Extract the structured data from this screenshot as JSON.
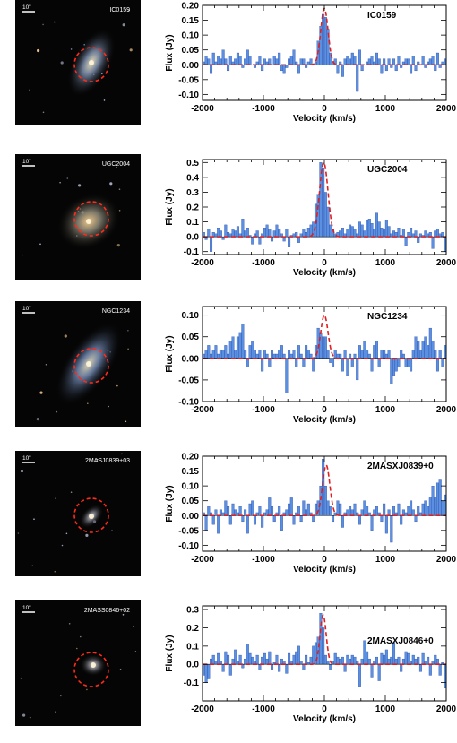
{
  "colors": {
    "bar_fill": "#5b8fe0",
    "bar_edge": "#1f3f9f",
    "fit_line": "#e02020",
    "aperture": "#ff2a1a",
    "sky": "#050505",
    "scale_text": "#ffffff"
  },
  "panels": [
    {
      "image": {
        "name": "IC0159",
        "scale_label": "10\""
      },
      "chart_data": {
        "type": "bar",
        "title": "IC0159",
        "xlabel": "Velocity (km/s)",
        "ylabel": "Flux (Jy)",
        "xlim": [
          -2000,
          2000
        ],
        "ylim": [
          -0.12,
          0.2
        ],
        "yticks": [
          -0.1,
          -0.05,
          0.0,
          0.05,
          0.1,
          0.15,
          0.2
        ],
        "ytick_labels": [
          "-0.10",
          "-0.05",
          "0.00",
          "0.05",
          "0.10",
          "0.15",
          "0.20"
        ],
        "xticks": [
          -2000,
          -1000,
          0,
          1000,
          2000
        ],
        "xtick_labels": [
          "-2000",
          "-1000",
          "0",
          "1000",
          "2000"
        ],
        "bin_width": 40,
        "x_start": -2000,
        "values": [
          0.01,
          0.03,
          0.02,
          -0.03,
          0.04,
          0.01,
          0.03,
          0.02,
          0.05,
          0.02,
          -0.02,
          0.03,
          0.01,
          0.02,
          0.04,
          0.03,
          -0.01,
          0.02,
          0.05,
          0.03,
          0.0,
          -0.01,
          0.01,
          0.03,
          -0.02,
          0.02,
          0.01,
          0.02,
          0.0,
          0.03,
          0.02,
          0.04,
          -0.02,
          -0.03,
          -0.01,
          0.02,
          0.03,
          0.05,
          0.01,
          -0.03,
          0.02,
          0.02,
          -0.01,
          0.01,
          0.02,
          0.0,
          0.01,
          0.08,
          0.13,
          0.17,
          0.16,
          0.12,
          0.04,
          0.01,
          0.02,
          -0.03,
          0.01,
          -0.04,
          0.02,
          0.03,
          0.02,
          0.04,
          0.03,
          -0.09,
          0.05,
          -0.02,
          0.0,
          0.01,
          0.02,
          0.03,
          0.01,
          0.04,
          0.02,
          -0.03,
          0.02,
          -0.02,
          0.02,
          -0.01,
          0.02,
          -0.02,
          0.03,
          -0.01,
          0.01,
          0.02,
          0.02,
          -0.03,
          0.03,
          -0.02,
          0.01,
          0.0,
          0.03,
          -0.01,
          0.01,
          0.02,
          0.03,
          -0.02,
          0.04,
          -0.01,
          0.01,
          0.02
        ],
        "fit": {
          "center": 0,
          "peak": 0.19,
          "width": 60
        }
      }
    },
    {
      "image": {
        "name": "UGC2004",
        "scale_label": "10\""
      },
      "chart_data": {
        "type": "bar",
        "title": "UGC2004",
        "xlabel": "Velocity (km/s)",
        "ylabel": "Flux (Jy)",
        "xlim": [
          -2000,
          2000
        ],
        "ylim": [
          -0.12,
          0.52
        ],
        "yticks": [
          -0.1,
          0.0,
          0.1,
          0.2,
          0.3,
          0.4,
          0.5
        ],
        "ytick_labels": [
          "-0.1",
          "0.0",
          "0.1",
          "0.2",
          "0.3",
          "0.4",
          "0.5"
        ],
        "xticks": [
          -2000,
          -1000,
          0,
          1000,
          2000
        ],
        "xtick_labels": [
          "-2000",
          "-1000",
          "0",
          "1000",
          "2000"
        ],
        "bin_width": 40,
        "x_start": -2000,
        "values": [
          0.03,
          -0.02,
          0.05,
          -0.1,
          0.03,
          0.02,
          0.06,
          0.04,
          -0.02,
          0.08,
          0.03,
          0.02,
          0.05,
          0.04,
          0.07,
          0.02,
          0.12,
          0.04,
          0.06,
          0.01,
          -0.05,
          0.02,
          0.04,
          -0.05,
          0.02,
          0.06,
          0.08,
          0.05,
          -0.03,
          0.04,
          0.08,
          0.05,
          0.02,
          -0.03,
          0.05,
          -0.07,
          0.01,
          0.02,
          0.03,
          -0.04,
          0.02,
          0.05,
          0.03,
          0.06,
          0.08,
          0.1,
          0.22,
          0.28,
          0.5,
          0.46,
          0.3,
          0.2,
          0.08,
          0.05,
          0.02,
          0.03,
          0.04,
          0.06,
          0.02,
          0.05,
          0.08,
          0.07,
          0.05,
          0.02,
          0.1,
          0.08,
          0.04,
          0.11,
          0.12,
          0.09,
          0.05,
          0.16,
          0.1,
          0.06,
          0.05,
          0.11,
          0.07,
          0.02,
          0.04,
          0.03,
          0.06,
          0.01,
          0.05,
          -0.06,
          0.03,
          0.06,
          0.02,
          0.04,
          -0.04,
          0.02,
          0.01,
          0.04,
          0.02,
          0.03,
          -0.08,
          0.04,
          0.05,
          0.02,
          0.03,
          -0.1
        ],
        "fit": {
          "center": -10,
          "peak": 0.5,
          "width": 70
        }
      }
    },
    {
      "image": {
        "name": "NGC1234",
        "scale_label": "10\""
      },
      "chart_data": {
        "type": "bar",
        "title": "NGC1234",
        "xlabel": "Velocity (km/s)",
        "ylabel": "Flux (Jy)",
        "xlim": [
          -2000,
          2000
        ],
        "ylim": [
          -0.1,
          0.12
        ],
        "yticks": [
          -0.1,
          -0.05,
          0.0,
          0.05,
          0.1
        ],
        "ytick_labels": [
          "-0.10",
          "-0.05",
          "0.00",
          "0.05",
          "0.10"
        ],
        "xticks": [
          -2000,
          -1000,
          0,
          1000,
          2000
        ],
        "xtick_labels": [
          "-2000",
          "-1000",
          "0",
          "1000",
          "2000"
        ],
        "bin_width": 40,
        "x_start": -2000,
        "values": [
          0.01,
          0.02,
          0.03,
          0.01,
          0.02,
          0.03,
          0.01,
          0.02,
          0.02,
          0.03,
          0.01,
          0.04,
          0.05,
          0.02,
          0.05,
          0.06,
          0.08,
          0.02,
          -0.02,
          0.03,
          0.04,
          0.02,
          0.01,
          0.02,
          -0.03,
          0.02,
          0.01,
          -0.02,
          0.02,
          0.01,
          0.01,
          0.02,
          0.03,
          0.01,
          -0.08,
          0.02,
          0.01,
          0.02,
          -0.02,
          0.03,
          0.01,
          -0.02,
          0.03,
          0.02,
          0.01,
          -0.03,
          0.03,
          0.07,
          0.06,
          0.05,
          0.05,
          0.02,
          -0.01,
          -0.02,
          0.02,
          0.01,
          0.01,
          -0.03,
          0.02,
          -0.04,
          0.01,
          -0.02,
          0.01,
          -0.05,
          0.03,
          0.02,
          0.04,
          0.02,
          0.01,
          -0.03,
          0.03,
          0.04,
          -0.02,
          0.02,
          0.02,
          0.01,
          0.02,
          -0.06,
          -0.04,
          -0.03,
          -0.02,
          0.02,
          0.01,
          -0.02,
          -0.02,
          -0.03,
          0.02,
          0.05,
          0.04,
          0.02,
          0.04,
          0.05,
          0.03,
          0.07,
          0.04,
          0.02,
          -0.03,
          0.02,
          -0.02,
          0.03
        ],
        "fit": {
          "center": 0,
          "peak": 0.1,
          "width": 60
        }
      }
    },
    {
      "image": {
        "name": "2MASJ0839+03",
        "scale_label": "10\""
      },
      "chart_data": {
        "type": "bar",
        "title": "2MASXJ0839+0",
        "xlabel": "Velocity (km/s)",
        "ylabel": "Flux (Jy)",
        "xlim": [
          -2000,
          2000
        ],
        "ylim": [
          -0.12,
          0.2
        ],
        "yticks": [
          -0.1,
          -0.05,
          0.0,
          0.05,
          0.1,
          0.15,
          0.2
        ],
        "ytick_labels": [
          "-0.10",
          "-0.05",
          "0.00",
          "0.05",
          "0.10",
          "0.15",
          "0.20"
        ],
        "xticks": [
          -2000,
          -1000,
          0,
          1000,
          2000
        ],
        "xtick_labels": [
          "-2000",
          "-1000",
          "0",
          "1000",
          "2000"
        ],
        "bin_width": 40,
        "x_start": -2000,
        "values": [
          0.01,
          -0.05,
          0.03,
          0.01,
          -0.03,
          0.02,
          -0.06,
          0.02,
          0.01,
          0.05,
          0.03,
          -0.03,
          0.04,
          0.02,
          0.01,
          0.03,
          -0.02,
          0.02,
          -0.06,
          0.04,
          0.05,
          -0.03,
          0.01,
          0.03,
          -0.04,
          0.01,
          0.02,
          0.06,
          0.03,
          -0.02,
          0.01,
          0.03,
          -0.05,
          0.01,
          0.02,
          0.04,
          0.06,
          -0.03,
          0.01,
          0.03,
          -0.02,
          0.05,
          0.02,
          0.04,
          0.01,
          -0.02,
          0.04,
          0.05,
          0.1,
          0.19,
          0.1,
          0.05,
          0.03,
          -0.02,
          0.01,
          0.05,
          0.04,
          -0.04,
          0.01,
          0.02,
          0.03,
          0.02,
          0.04,
          0.01,
          -0.03,
          0.02,
          0.05,
          0.03,
          0.01,
          -0.05,
          0.02,
          0.03,
          0.01,
          -0.02,
          0.04,
          -0.06,
          0.02,
          -0.09,
          0.03,
          0.01,
          0.04,
          -0.03,
          0.02,
          0.01,
          0.03,
          0.05,
          0.02,
          -0.02,
          0.03,
          0.01,
          0.04,
          0.05,
          0.03,
          0.06,
          0.1,
          0.06,
          0.11,
          0.12,
          0.05,
          0.07
        ],
        "fit": {
          "center": 30,
          "peak": 0.17,
          "width": 60
        }
      }
    },
    {
      "image": {
        "name": "2MASS0846+02",
        "scale_label": "10\""
      },
      "chart_data": {
        "type": "bar",
        "title": "2MASXJ0846+0",
        "xlabel": "Velocity (km/s)",
        "ylabel": "Flux (Jy)",
        "xlim": [
          -2000,
          2000
        ],
        "ylim": [
          -0.2,
          0.32
        ],
        "yticks": [
          -0.1,
          0.0,
          0.1,
          0.2,
          0.3
        ],
        "ytick_labels": [
          "-0.1",
          "0.0",
          "0.1",
          "0.2",
          "0.3"
        ],
        "xticks": [
          -2000,
          -1000,
          0,
          1000,
          2000
        ],
        "xtick_labels": [
          "-2000",
          "-1000",
          "0",
          "1000",
          "2000"
        ],
        "bin_width": 40,
        "x_start": -2000,
        "values": [
          -0.06,
          -0.1,
          -0.08,
          0.03,
          0.05,
          0.02,
          0.06,
          0.02,
          -0.04,
          0.07,
          0.05,
          -0.06,
          0.03,
          0.08,
          0.02,
          0.05,
          -0.02,
          0.03,
          0.11,
          0.06,
          0.04,
          0.02,
          0.05,
          -0.03,
          0.04,
          0.06,
          0.03,
          0.07,
          -0.03,
          0.01,
          0.05,
          -0.04,
          0.03,
          0.02,
          -0.05,
          0.06,
          0.02,
          0.05,
          0.07,
          0.1,
          0.02,
          -0.03,
          0.05,
          0.01,
          0.04,
          0.1,
          0.12,
          0.15,
          0.28,
          0.2,
          0.05,
          0.02,
          -0.03,
          0.02,
          0.06,
          0.04,
          0.03,
          0.04,
          -0.04,
          0.05,
          0.03,
          0.05,
          0.04,
          0.02,
          -0.12,
          0.03,
          0.13,
          0.07,
          0.03,
          -0.07,
          0.02,
          0.04,
          -0.09,
          0.06,
          0.05,
          0.08,
          0.03,
          0.04,
          0.12,
          0.03,
          0.04,
          -0.04,
          0.03,
          0.07,
          0.06,
          0.02,
          0.05,
          0.03,
          0.04,
          -0.04,
          0.06,
          0.02,
          0.04,
          -0.06,
          0.02,
          0.05,
          0.03,
          -0.06,
          0.01,
          -0.13
        ],
        "fit": {
          "center": -20,
          "peak": 0.27,
          "width": 50
        }
      }
    }
  ]
}
